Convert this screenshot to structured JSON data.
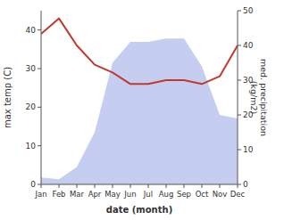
{
  "chart_data": {
    "type": "line",
    "xlabel": "date (month)",
    "ylabel": "max temp (C)",
    "y2label": "med. precipitation\n (kg/m2)",
    "categories": [
      "Jan",
      "Feb",
      "Mar",
      "Apr",
      "May",
      "Jun",
      "Jul",
      "Aug",
      "Sep",
      "Oct",
      "Nov",
      "Dec"
    ],
    "series": [
      {
        "type": "area",
        "axis": "y2",
        "color": "#c5cef0",
        "values": [
          2,
          1.5,
          5,
          15,
          35,
          41,
          41,
          42,
          42,
          34,
          20,
          19
        ]
      },
      {
        "type": "line",
        "color": "#c0392b",
        "values": [
          39,
          43,
          36,
          31,
          29,
          26,
          26,
          27,
          27,
          26,
          28,
          36
        ]
      }
    ],
    "ylim": [
      0,
      45
    ],
    "yticks": [
      0,
      10,
      20,
      30,
      40
    ],
    "y2lim": [
      0,
      50
    ],
    "y2ticks": [
      0,
      10,
      20,
      30,
      40,
      50
    ]
  }
}
